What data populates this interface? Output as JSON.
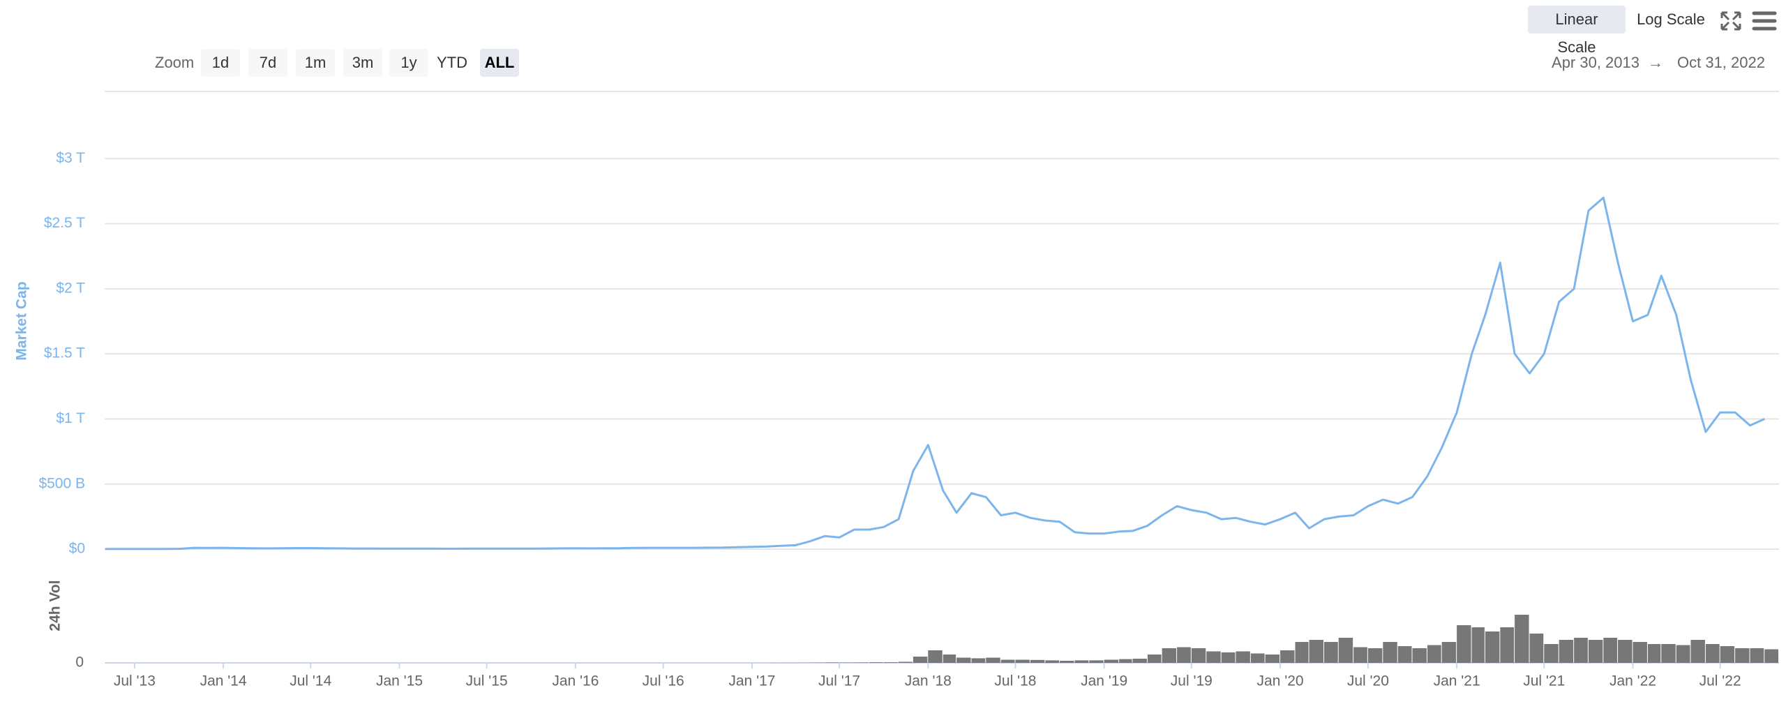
{
  "controls": {
    "scale_buttons": [
      "Linear Scale",
      "Log Scale"
    ],
    "zoom_label": "Zoom",
    "zoom_buttons": [
      "1d",
      "7d",
      "1m",
      "3m",
      "1y",
      "YTD",
      "ALL"
    ],
    "range": {
      "from": "Apr 30, 2013",
      "separator": "→",
      "to": "Oct 31, 2022"
    }
  },
  "chart_data": [
    {
      "type": "line",
      "y_label": "Market Cap",
      "color": "#7cb5ec",
      "grid": true,
      "xlim": [
        "2013-04-30",
        "2022-10-31"
      ],
      "xticks": [
        {
          "value": "2013-07",
          "label": "Jul '13"
        },
        {
          "value": "2014-01",
          "label": "Jan '14"
        },
        {
          "value": "2014-07",
          "label": "Jul '14"
        },
        {
          "value": "2015-01",
          "label": "Jan '15"
        },
        {
          "value": "2015-07",
          "label": "Jul '15"
        },
        {
          "value": "2016-01",
          "label": "Jan '16"
        },
        {
          "value": "2016-07",
          "label": "Jul '16"
        },
        {
          "value": "2017-01",
          "label": "Jan '17"
        },
        {
          "value": "2017-07",
          "label": "Jul '17"
        },
        {
          "value": "2018-01",
          "label": "Jan '18"
        },
        {
          "value": "2018-07",
          "label": "Jul '18"
        },
        {
          "value": "2019-01",
          "label": "Jan '19"
        },
        {
          "value": "2019-07",
          "label": "Jul '19"
        },
        {
          "value": "2020-01",
          "label": "Jan '20"
        },
        {
          "value": "2020-07",
          "label": "Jul '20"
        },
        {
          "value": "2021-01",
          "label": "Jan '21"
        },
        {
          "value": "2021-07",
          "label": "Jul '21"
        },
        {
          "value": "2022-01",
          "label": "Jan '22"
        },
        {
          "value": "2022-07",
          "label": "Jul '22"
        }
      ],
      "ylim": [
        0,
        3500000000000.0
      ],
      "yticks": [
        {
          "value": 0,
          "label": "$0"
        },
        {
          "value": 500000000000.0,
          "label": "$500 B"
        },
        {
          "value": 1000000000000.0,
          "label": "$1 T"
        },
        {
          "value": 1500000000000.0,
          "label": "$1.5 T"
        },
        {
          "value": 2000000000000.0,
          "label": "$2 T"
        },
        {
          "value": 2500000000000.0,
          "label": "$2.5 T"
        },
        {
          "value": 3000000000000.0,
          "label": "$3 T"
        }
      ],
      "x": [
        "2013-05",
        "2013-06",
        "2013-07",
        "2013-08",
        "2013-09",
        "2013-10",
        "2013-11",
        "2013-12",
        "2014-01",
        "2014-02",
        "2014-03",
        "2014-04",
        "2014-05",
        "2014-06",
        "2014-07",
        "2014-08",
        "2014-09",
        "2014-10",
        "2014-11",
        "2014-12",
        "2015-01",
        "2015-02",
        "2015-03",
        "2015-04",
        "2015-05",
        "2015-06",
        "2015-07",
        "2015-08",
        "2015-09",
        "2015-10",
        "2015-11",
        "2015-12",
        "2016-01",
        "2016-02",
        "2016-03",
        "2016-04",
        "2016-05",
        "2016-06",
        "2016-07",
        "2016-08",
        "2016-09",
        "2016-10",
        "2016-11",
        "2016-12",
        "2017-01",
        "2017-02",
        "2017-03",
        "2017-04",
        "2017-05",
        "2017-06",
        "2017-07",
        "2017-08",
        "2017-09",
        "2017-10",
        "2017-11",
        "2017-12",
        "2018-01",
        "2018-02",
        "2018-03",
        "2018-04",
        "2018-05",
        "2018-06",
        "2018-07",
        "2018-08",
        "2018-09",
        "2018-10",
        "2018-11",
        "2018-12",
        "2019-01",
        "2019-02",
        "2019-03",
        "2019-04",
        "2019-05",
        "2019-06",
        "2019-07",
        "2019-08",
        "2019-09",
        "2019-10",
        "2019-11",
        "2019-12",
        "2020-01",
        "2020-02",
        "2020-03",
        "2020-04",
        "2020-05",
        "2020-06",
        "2020-07",
        "2020-08",
        "2020-09",
        "2020-10",
        "2020-11",
        "2020-12",
        "2021-01",
        "2021-02",
        "2021-03",
        "2021-04",
        "2021-05",
        "2021-06",
        "2021-07",
        "2021-08",
        "2021-09",
        "2021-10",
        "2021-11",
        "2021-12",
        "2022-01",
        "2022-02",
        "2022-03",
        "2022-04",
        "2022-05",
        "2022-06",
        "2022-07",
        "2022-08",
        "2022-09",
        "2022-10"
      ],
      "series": [
        {
          "name": "Market Cap",
          "values": [
            1500000000.0,
            1200000000.0,
            1000000000.0,
            1300000000.0,
            1500000000.0,
            2000000000.0,
            10000000000.0,
            9000000000.0,
            10000000000.0,
            8000000000.0,
            7000000000.0,
            6000000000.0,
            7000000000.0,
            8000000000.0,
            8000000000.0,
            7000000000.0,
            6000000000.0,
            5000000000.0,
            5000000000.0,
            4500000000.0,
            3500000000.0,
            3500000000.0,
            3500000000.0,
            3300000000.0,
            3200000000.0,
            3500000000.0,
            4000000000.0,
            3500000000.0,
            3500000000.0,
            4000000000.0,
            5000000000.0,
            6000000000.0,
            6500000000.0,
            6000000000.0,
            6500000000.0,
            7000000000.0,
            9000000000.0,
            10000000000.0,
            10000000000.0,
            10000000000.0,
            10000000000.0,
            11000000000.0,
            12000000000.0,
            15000000000.0,
            17000000000.0,
            20000000000.0,
            25000000000.0,
            30000000000.0,
            60000000000.0,
            100000000000.0,
            90000000000.0,
            150000000000.0,
            150000000000.0,
            170000000000.0,
            230000000000.0,
            600000000000.0,
            800000000000.0,
            450000000000.0,
            280000000000.0,
            430000000000.0,
            400000000000.0,
            260000000000.0,
            280000000000.0,
            240000000000.0,
            220000000000.0,
            210000000000.0,
            130000000000.0,
            120000000000.0,
            120000000000.0,
            135000000000.0,
            140000000000.0,
            180000000000.0,
            260000000000.0,
            330000000000.0,
            300000000000.0,
            280000000000.0,
            230000000000.0,
            240000000000.0,
            210000000000.0,
            190000000000.0,
            230000000000.0,
            280000000000.0,
            160000000000.0,
            230000000000.0,
            250000000000.0,
            260000000000.0,
            330000000000.0,
            380000000000.0,
            350000000000.0,
            400000000000.0,
            560000000000.0,
            780000000000.0,
            1050000000000.0,
            1500000000000.0,
            1800000000000.0,
            2200000000000.0,
            1500000000000.0,
            1350000000000.0,
            1500000000000.0,
            1900000000000.0,
            2000000000000.0,
            2600000000000.0,
            2700000000000.0,
            2200000000000.0,
            1750000000000.0,
            1800000000000.0,
            2100000000000.0,
            1800000000000.0,
            1300000000000.0,
            900000000000.0,
            1050000000000.0,
            1050000000000.0,
            950000000000.0,
            1000000000000.0
          ]
        }
      ]
    },
    {
      "type": "bar",
      "y_label": "24h Vol",
      "color": "#777777",
      "ylim": [
        0,
        500000000000.0
      ],
      "yticks": [
        0
      ],
      "series": [
        {
          "name": "24h Vol",
          "values": [
            50000000.0,
            50000000.0,
            50000000.0,
            50000000.0,
            50000000.0,
            50000000.0,
            50000000.0,
            50000000.0,
            100000000.0,
            100000000.0,
            100000000.0,
            100000000.0,
            100000000.0,
            100000000.0,
            100000000.0,
            100000000.0,
            100000000.0,
            100000000.0,
            100000000.0,
            100000000.0,
            100000000.0,
            100000000.0,
            100000000.0,
            100000000.0,
            100000000.0,
            100000000.0,
            100000000.0,
            100000000.0,
            100000000.0,
            100000000.0,
            100000000.0,
            100000000.0,
            200000000.0,
            200000000.0,
            200000000.0,
            200000000.0,
            200000000.0,
            200000000.0,
            200000000.0,
            200000000.0,
            200000000.0,
            200000000.0,
            200000000.0,
            200000000.0,
            300000000.0,
            400000000.0,
            500000000.0,
            600000000.0,
            1000000000.0,
            2000000000.0,
            1500000000.0,
            2000000000.0,
            3000000000.0,
            3000000000.0,
            5000000000.0,
            30000000000.0,
            60000000000.0,
            40000000000.0,
            25000000000.0,
            22000000000.0,
            25000000000.0,
            15000000000.0,
            15000000000.0,
            14000000000.0,
            12000000000.0,
            10000000000.0,
            12000000000.0,
            12000000000.0,
            15000000000.0,
            18000000000.0,
            20000000000.0,
            40000000000.0,
            70000000000.0,
            75000000000.0,
            70000000000.0,
            55000000000.0,
            50000000000.0,
            55000000000.0,
            45000000000.0,
            40000000000.0,
            60000000000.0,
            100000000000.0,
            110000000000.0,
            100000000000.0,
            120000000000.0,
            75000000000.0,
            70000000000.0,
            100000000000.0,
            80000000000.0,
            70000000000.0,
            85000000000.0,
            100000000000.0,
            180000000000.0,
            170000000000.0,
            150000000000.0,
            170000000000.0,
            230000000000.0,
            140000000000.0,
            90000000000.0,
            110000000000.0,
            120000000000.0,
            110000000000.0,
            120000000000.0,
            110000000000.0,
            100000000000.0,
            90000000000.0,
            90000000000.0,
            85000000000.0,
            110000000000.0,
            90000000000.0,
            80000000000.0,
            70000000000.0,
            70000000000.0,
            65000000000.0
          ]
        }
      ]
    }
  ]
}
